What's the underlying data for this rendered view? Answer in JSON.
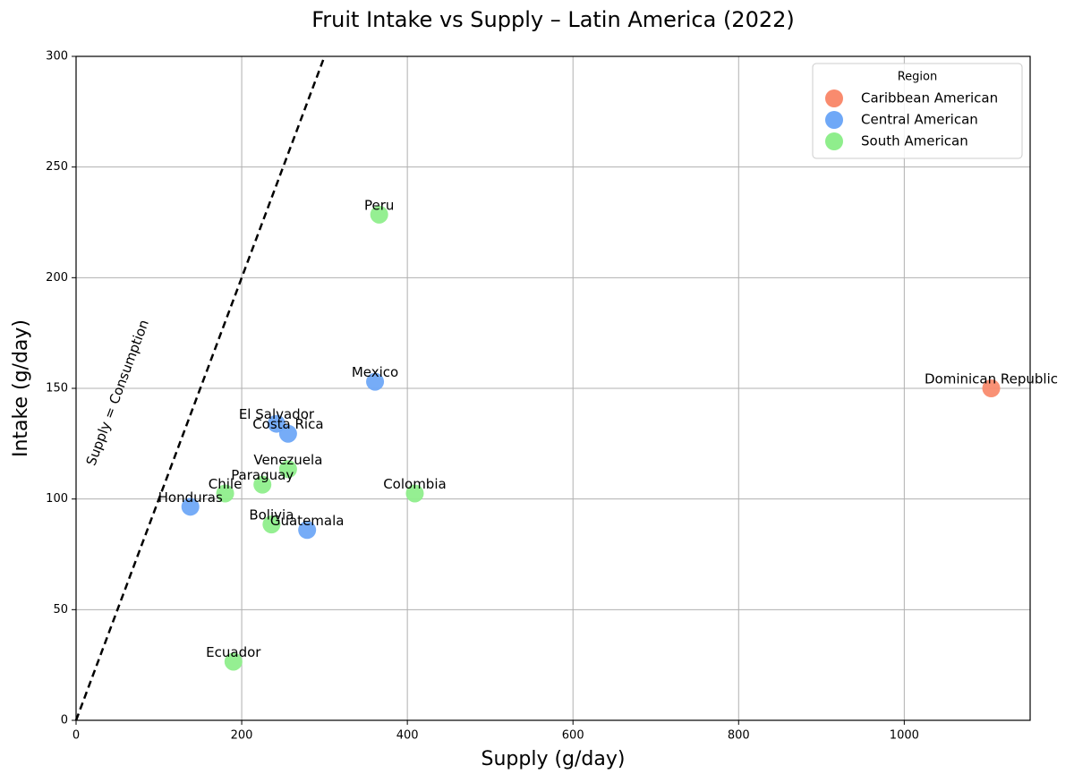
{
  "chart_data": {
    "type": "scatter",
    "title": "Fruit Intake vs Supply – Latin America (2022)",
    "x_label": "Supply (g/day)",
    "y_label": "Intake (g/day)",
    "xlim": [
      0,
      1152
    ],
    "ylim": [
      0,
      300
    ],
    "xticks": [
      0,
      200,
      400,
      600,
      800,
      1000
    ],
    "yticks": [
      0,
      50,
      100,
      150,
      200,
      250,
      300
    ],
    "grid": true,
    "legend_title": "Region",
    "legend_loc": "upper right",
    "reference_line": {
      "label": "Supply = Consumption",
      "x": [
        0,
        300
      ],
      "y": [
        0,
        300
      ]
    },
    "series": [
      {
        "name": "Caribbean American",
        "color": "#f98b6e",
        "x": [
          1105
        ],
        "values": [
          150
        ],
        "labels": [
          "Dominican Republic"
        ]
      },
      {
        "name": "Central American",
        "color": "#6fa8f7",
        "x": [
          361,
          242,
          256,
          138,
          279
        ],
        "values": [
          153,
          134,
          129.5,
          96.5,
          86
        ],
        "labels": [
          "Mexico",
          "El Salvador",
          "Costa Rica",
          "Honduras",
          "Guatemala"
        ]
      },
      {
        "name": "South American",
        "color": "#8fee8c",
        "x": [
          366,
          256,
          225,
          180,
          409,
          236,
          190
        ],
        "values": [
          228.5,
          113.5,
          106.5,
          102.5,
          102.5,
          88.5,
          26.5
        ],
        "labels": [
          "Peru",
          "Venezuela",
          "Paraguay",
          "Chile",
          "Colombia",
          "Bolivia",
          "Ecuador"
        ]
      }
    ]
  }
}
